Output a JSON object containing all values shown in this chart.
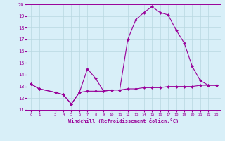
{
  "xlabel": "Windchill (Refroidissement éolien,°C)",
  "hours": [
    0,
    1,
    3,
    4,
    5,
    6,
    7,
    8,
    9,
    10,
    11,
    12,
    13,
    14,
    15,
    16,
    17,
    18,
    19,
    20,
    21,
    22,
    23
  ],
  "temp": [
    13.2,
    12.8,
    12.5,
    12.3,
    11.5,
    12.5,
    14.5,
    13.7,
    12.6,
    12.7,
    12.7,
    17.0,
    18.7,
    19.3,
    19.8,
    19.3,
    19.1,
    17.8,
    16.7,
    14.7,
    13.5,
    13.1,
    13.1
  ],
  "windchill": [
    13.2,
    12.8,
    12.5,
    12.3,
    11.5,
    12.5,
    12.6,
    12.6,
    12.6,
    12.7,
    12.7,
    12.8,
    12.8,
    12.9,
    12.9,
    12.9,
    13.0,
    13.0,
    13.0,
    13.0,
    13.1,
    13.1,
    13.1
  ],
  "ylim": [
    11,
    20
  ],
  "xlim": [
    -0.5,
    23.5
  ],
  "yticks": [
    11,
    12,
    13,
    14,
    15,
    16,
    17,
    18,
    19,
    20
  ],
  "xticks": [
    0,
    1,
    3,
    4,
    5,
    6,
    7,
    8,
    9,
    10,
    11,
    12,
    13,
    14,
    15,
    16,
    17,
    18,
    19,
    20,
    21,
    22,
    23
  ],
  "line_color": "#990099",
  "bg_color": "#d8eff8",
  "grid_color": "#b8d8e0"
}
